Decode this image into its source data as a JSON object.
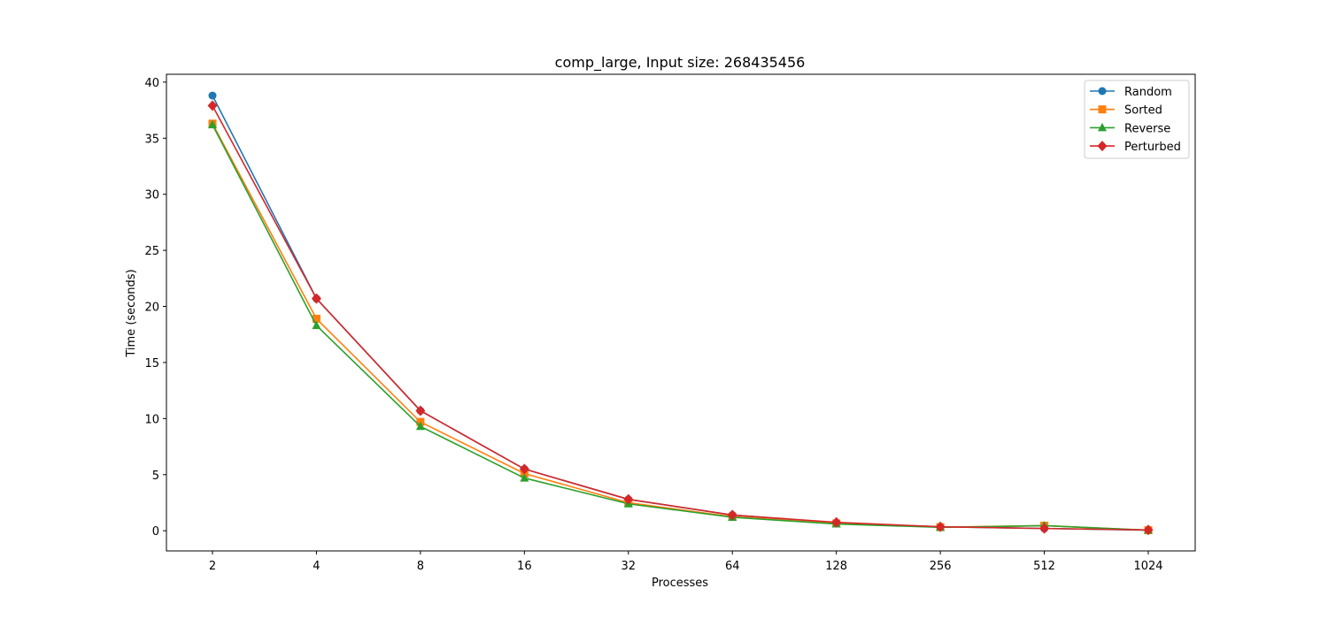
{
  "chart_data": {
    "type": "line",
    "title": "comp_large, Input size: 268435456",
    "xlabel": "Processes",
    "ylabel": "Time (seconds)",
    "categories": [
      "2",
      "4",
      "8",
      "16",
      "32",
      "64",
      "128",
      "256",
      "512",
      "1024"
    ],
    "ylim": [
      -1.8,
      40.7
    ],
    "yticks": [
      0,
      5,
      10,
      15,
      20,
      25,
      30,
      35,
      40
    ],
    "grid": false,
    "legend_position": "top-right",
    "series": [
      {
        "name": "Random",
        "color": "#1f77b4",
        "marker": "circle",
        "values": [
          38.8,
          20.7,
          10.7,
          5.5,
          2.8,
          1.4,
          0.7,
          0.35,
          0.2,
          0.05
        ]
      },
      {
        "name": "Sorted",
        "color": "#ff7f0e",
        "marker": "square",
        "values": [
          36.3,
          18.9,
          9.7,
          5.1,
          2.5,
          1.25,
          0.65,
          0.32,
          0.45,
          0.05
        ]
      },
      {
        "name": "Reverse",
        "color": "#2ca02c",
        "marker": "triangle",
        "values": [
          36.2,
          18.3,
          9.3,
          4.7,
          2.4,
          1.2,
          0.6,
          0.3,
          0.45,
          0.05
        ]
      },
      {
        "name": "Perturbed",
        "color": "#d62728",
        "marker": "diamond",
        "values": [
          37.9,
          20.7,
          10.7,
          5.5,
          2.8,
          1.4,
          0.75,
          0.35,
          0.2,
          0.07
        ]
      }
    ]
  }
}
